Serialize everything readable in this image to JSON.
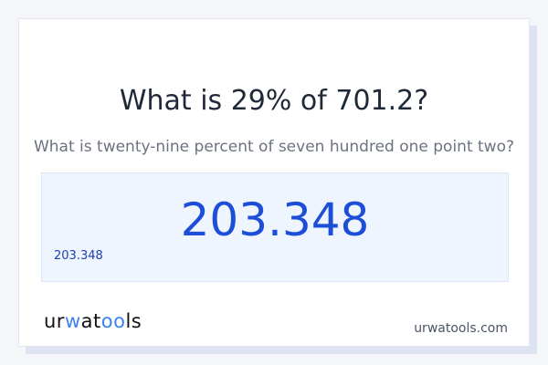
{
  "title": "What is 29% of 701.2?",
  "subtitle": "What is twenty-nine percent of seven hundred one point two?",
  "result": {
    "value": "203.348",
    "detail": "203.348"
  },
  "footer": {
    "logo": "urwatools",
    "site": "urwatools.com"
  },
  "colors": {
    "accent": "#1d4ed8",
    "result_bg": "#eef5ff"
  }
}
